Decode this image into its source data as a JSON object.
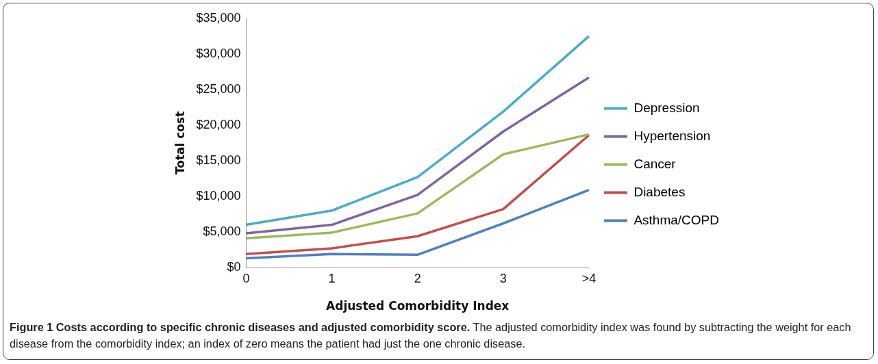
{
  "chart_data": {
    "type": "line",
    "title": "Figure 1 Costs according to specific chronic diseases and adjusted comorbidity score.",
    "annotations": [
      "The adjusted comorbidity index was found by subtracting the weight for each disease from the comorbidity index; an index of zero means the patient had just the one chronic disease."
    ],
    "xlabel": "Adjusted Comorbidity Index",
    "ylabel": "Total cost",
    "categories": [
      "0",
      "1",
      "2",
      "3",
      ">4"
    ],
    "ylim": [
      0,
      35000
    ],
    "yticks": [
      {
        "value": 0,
        "label": "$0"
      },
      {
        "value": 5000,
        "label": "$5,000"
      },
      {
        "value": 10000,
        "label": "$10,000"
      },
      {
        "value": 15000,
        "label": "$15,000"
      },
      {
        "value": 20000,
        "label": "$20,000"
      },
      {
        "value": 25000,
        "label": "$25,000"
      },
      {
        "value": 30000,
        "label": "$30,000"
      },
      {
        "value": 35000,
        "label": "$35,000"
      }
    ],
    "grid": false,
    "legend": "right",
    "marker": "none",
    "series": [
      {
        "name": "Depression",
        "color": "#4bacc6",
        "values": [
          6000,
          8000,
          12700,
          21900,
          32500
        ]
      },
      {
        "name": "Hypertension",
        "color": "#8064a2",
        "values": [
          4800,
          6000,
          10200,
          19100,
          26700
        ]
      },
      {
        "name": "Cancer",
        "color": "#9bbb59",
        "values": [
          4100,
          4900,
          7600,
          15900,
          18700
        ]
      },
      {
        "name": "Diabetes",
        "color": "#c0504d",
        "values": [
          1900,
          2700,
          4400,
          8200,
          18600
        ]
      },
      {
        "name": "Asthma/COPD",
        "color": "#4f81bd",
        "values": [
          1300,
          1900,
          1800,
          6200,
          10900
        ]
      }
    ]
  }
}
